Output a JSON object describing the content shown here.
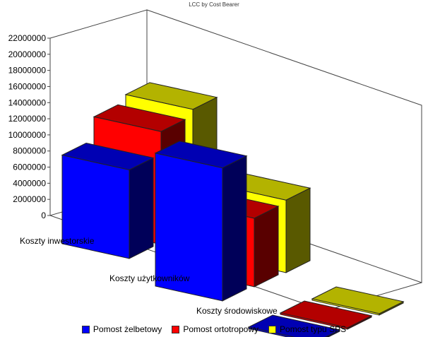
{
  "chart_data": {
    "type": "bar",
    "title": "LCC by Cost Bearer",
    "xlabel": "",
    "ylabel": "",
    "ylim": [
      0,
      22000000
    ],
    "yticks": [
      0,
      2000000,
      4000000,
      6000000,
      8000000,
      10000000,
      12000000,
      14000000,
      16000000,
      18000000,
      20000000,
      22000000
    ],
    "categories": [
      "Koszty inwestorskie",
      "Koszty użytkowników",
      "Koszty środowiskowe"
    ],
    "series": [
      {
        "name": "Pomost żelbetowy",
        "color": "#0000ff",
        "values": [
          11000000,
          16500000,
          100000
        ]
      },
      {
        "name": "Pomost ortotropowy",
        "color": "#ff0000",
        "values": [
          14000000,
          8500000,
          100000
        ]
      },
      {
        "name": "Pomost typu SPS",
        "color": "#ffff00",
        "values": [
          15000000,
          9000000,
          100000
        ]
      }
    ],
    "legend_position": "bottom",
    "projection": "3d"
  }
}
